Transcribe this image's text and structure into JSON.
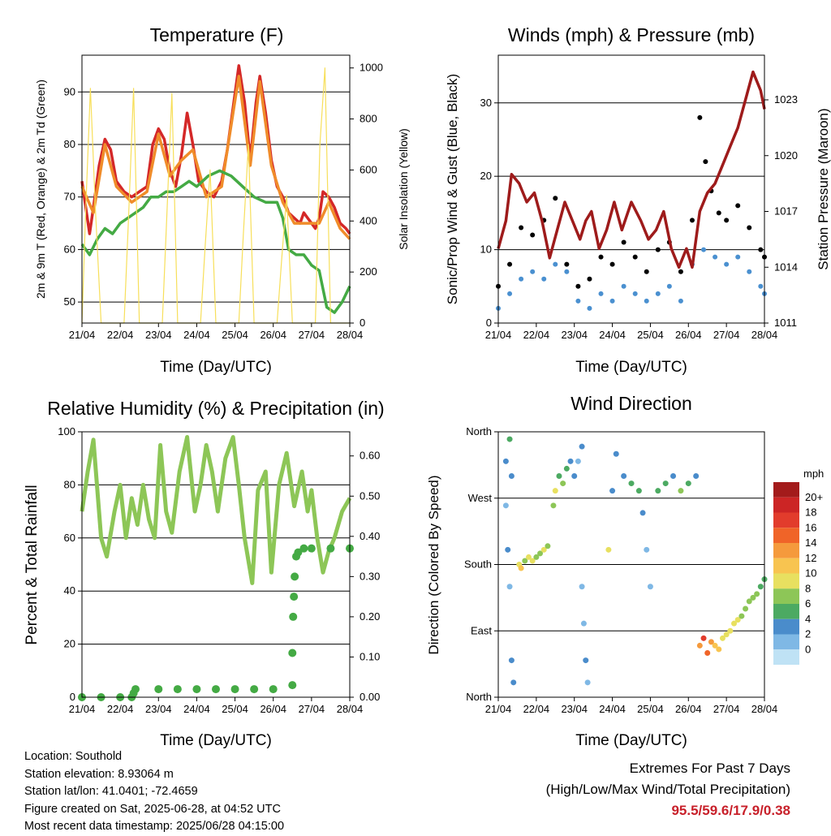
{
  "shared": {
    "xlabel": "Time (Day/UTC)",
    "xticks": [
      "21/04",
      "22/04",
      "23/04",
      "24/04",
      "25/04",
      "26/04",
      "27/04",
      "28/04"
    ]
  },
  "chart_data": [
    {
      "id": "temperature",
      "type": "line",
      "title": "Temperature (F)",
      "xlabel": "Time (Day/UTC)",
      "ylabel": "2m & 9m T (Red, Orange) & 2m Td (Green)",
      "ylabel_right": "Solar Insolation (Yellow)",
      "ylim": [
        46,
        97
      ],
      "yticks": [
        50,
        60,
        70,
        80,
        90
      ],
      "ylim_right": [
        0,
        1050
      ],
      "yticks_right": [
        0,
        200,
        400,
        600,
        800,
        1000
      ],
      "xlim": [
        0,
        7
      ],
      "grid": true,
      "series": [
        {
          "color": "#d42828",
          "x": [
            0,
            0.1,
            0.2,
            0.3,
            0.45,
            0.6,
            0.75,
            0.9,
            1.1,
            1.3,
            1.5,
            1.7,
            1.85,
            2.0,
            2.15,
            2.3,
            2.45,
            2.6,
            2.75,
            2.9,
            3.05,
            3.25,
            3.45,
            3.65,
            3.8,
            3.95,
            4.1,
            4.25,
            4.4,
            4.55,
            4.65,
            4.8,
            4.95,
            5.1,
            5.25,
            5.4,
            5.55,
            5.7,
            5.8,
            5.9,
            6.0,
            6.1,
            6.2,
            6.3,
            6.45,
            6.6,
            6.75,
            6.9,
            7.0
          ],
          "y": [
            73,
            68,
            63,
            68,
            76,
            81,
            79,
            73,
            71,
            70,
            71,
            72,
            80,
            83,
            81,
            75,
            72,
            78,
            86,
            80,
            73,
            71,
            70,
            73,
            79,
            87,
            95,
            88,
            77,
            88,
            93,
            86,
            77,
            72,
            70,
            67,
            66,
            65,
            67,
            66,
            65,
            64,
            66,
            71,
            70,
            68,
            65,
            64,
            63
          ]
        },
        {
          "color": "#f08c2a",
          "x": [
            0,
            0.3,
            0.6,
            0.9,
            1.3,
            1.7,
            2.0,
            2.3,
            2.6,
            2.9,
            3.25,
            3.65,
            3.95,
            4.1,
            4.4,
            4.65,
            4.95,
            5.25,
            5.55,
            5.9,
            6.2,
            6.45,
            6.75,
            7.0
          ],
          "y": [
            72,
            67,
            80,
            72,
            69,
            71,
            82,
            74,
            77,
            79,
            70,
            72,
            86,
            93,
            76,
            92,
            76,
            69,
            65,
            65,
            65,
            69,
            64,
            62
          ]
        },
        {
          "color": "#44aa44",
          "x": [
            0,
            0.2,
            0.4,
            0.6,
            0.8,
            1.0,
            1.2,
            1.4,
            1.6,
            1.8,
            2.0,
            2.2,
            2.4,
            2.6,
            2.8,
            3.0,
            3.3,
            3.6,
            3.9,
            4.2,
            4.5,
            4.8,
            5.1,
            5.25,
            5.4,
            5.6,
            5.8,
            6.0,
            6.2,
            6.4,
            6.6,
            6.8,
            7.0
          ],
          "y": [
            61,
            59,
            62,
            64,
            63,
            65,
            66,
            67,
            68,
            70,
            70,
            71,
            71,
            72,
            73,
            72,
            74,
            75,
            74,
            72,
            70,
            69,
            69,
            66,
            60,
            59,
            59,
            57,
            56,
            49,
            48,
            50,
            53
          ]
        },
        {
          "color": "#f7df5a",
          "axis": "right",
          "x": [
            0,
            0.1,
            0.22,
            0.35,
            0.5,
            1.1,
            1.22,
            1.35,
            1.5,
            2.1,
            2.22,
            2.35,
            2.5,
            3.1,
            3.22,
            3.35,
            3.5,
            4.1,
            4.22,
            4.35,
            4.5,
            5.1,
            5.22,
            5.35,
            5.5,
            6.1,
            6.22,
            6.35,
            6.5,
            7.0
          ],
          "y": [
            0,
            450,
            920,
            450,
            0,
            0,
            420,
            920,
            0,
            0,
            430,
            900,
            0,
            0,
            300,
            600,
            0,
            0,
            350,
            700,
            0,
            0,
            250,
            500,
            0,
            0,
            700,
            1000,
            0,
            0
          ]
        }
      ]
    },
    {
      "id": "winds",
      "type": "scatter",
      "title": "Winds (mph) & Pressure (mb)",
      "xlabel": "Time (Day/UTC)",
      "ylabel": "Sonic/Prop Wind & Gust (Blue, Black)",
      "ylabel_right": "Station Pressure (Maroon)",
      "ylim": [
        0,
        36.5
      ],
      "yticks": [
        0,
        10,
        20,
        30
      ],
      "ylim_right": [
        1011,
        1025.4
      ],
      "yticks_right": [
        1011,
        1014,
        1017,
        1020,
        1023
      ],
      "xlim": [
        0,
        7
      ],
      "grid": true,
      "series": [
        {
          "color": "#4a90d0",
          "x": [
            0,
            0.3,
            0.6,
            0.9,
            1.2,
            1.5,
            1.8,
            2.1,
            2.4,
            2.7,
            3.0,
            3.3,
            3.6,
            3.9,
            4.2,
            4.5,
            4.8,
            5.1,
            5.4,
            5.7,
            6.0,
            6.3,
            6.6,
            6.9,
            7.0
          ],
          "y": [
            2,
            4,
            6,
            7,
            6,
            8,
            7,
            3,
            2,
            4,
            3,
            5,
            4,
            3,
            4,
            5,
            3,
            8,
            10,
            9,
            8,
            9,
            7,
            5,
            4
          ]
        },
        {
          "color": "#000000",
          "x": [
            0,
            0.3,
            0.6,
            0.9,
            1.2,
            1.5,
            1.8,
            2.1,
            2.4,
            2.7,
            3.0,
            3.3,
            3.6,
            3.9,
            4.2,
            4.5,
            4.8,
            5.1,
            5.3,
            5.45,
            5.6,
            5.8,
            6.0,
            6.3,
            6.6,
            6.9,
            7.0
          ],
          "y": [
            5,
            8,
            13,
            12,
            14,
            17,
            8,
            5,
            6,
            9,
            8,
            11,
            9,
            7,
            10,
            11,
            7,
            14,
            28,
            22,
            18,
            15,
            14,
            16,
            13,
            10,
            9
          ]
        },
        {
          "color": "#9e1b1b",
          "axis": "right",
          "x": [
            0,
            0.2,
            0.35,
            0.55,
            0.75,
            0.95,
            1.15,
            1.35,
            1.55,
            1.75,
            1.95,
            2.15,
            2.3,
            2.45,
            2.65,
            2.85,
            3.05,
            3.25,
            3.5,
            3.75,
            3.95,
            4.15,
            4.35,
            4.55,
            4.75,
            4.95,
            5.1,
            5.3,
            5.5,
            5.7,
            5.9,
            6.1,
            6.3,
            6.5,
            6.7,
            6.9,
            7.0
          ],
          "y": [
            1015,
            1016.5,
            1019,
            1018.5,
            1017.5,
            1018,
            1016.5,
            1014.5,
            1016,
            1017.5,
            1016.5,
            1015.5,
            1016.5,
            1017,
            1015,
            1016,
            1017.5,
            1016,
            1017.5,
            1016.5,
            1015.5,
            1016,
            1017,
            1015,
            1014,
            1015,
            1014,
            1017,
            1018,
            1018.5,
            1019.5,
            1020.5,
            1021.5,
            1023,
            1024.5,
            1023.5,
            1022.5
          ]
        }
      ]
    },
    {
      "id": "humidity",
      "type": "line",
      "title": "Relative Humidity (%) & Precipitation (in)",
      "xlabel": "Time (Day/UTC)",
      "ylabel": "Percent & Total Rainfall",
      "ylim": [
        0,
        100
      ],
      "yticks": [
        0,
        20,
        40,
        60,
        80,
        100
      ],
      "ylim_right": [
        0,
        0.66
      ],
      "yticks_right": [
        "0.00",
        "0.10",
        "0.20",
        "0.30",
        "0.40",
        "0.50",
        "0.60"
      ],
      "xlim": [
        0,
        7
      ],
      "grid": true,
      "series": [
        {
          "color": "#8dc657",
          "x": [
            0,
            0.15,
            0.3,
            0.5,
            0.65,
            0.85,
            1.0,
            1.15,
            1.3,
            1.45,
            1.6,
            1.75,
            1.9,
            2.05,
            2.2,
            2.35,
            2.55,
            2.75,
            2.95,
            3.1,
            3.25,
            3.4,
            3.55,
            3.75,
            3.95,
            4.1,
            4.25,
            4.45,
            4.6,
            4.8,
            4.95,
            5.15,
            5.35,
            5.55,
            5.75,
            5.9,
            6.0,
            6.15,
            6.3,
            6.45,
            6.6,
            6.8,
            7.0
          ],
          "y": [
            70,
            85,
            97,
            60,
            53,
            70,
            80,
            60,
            75,
            65,
            80,
            67,
            60,
            95,
            70,
            62,
            85,
            98,
            70,
            80,
            95,
            85,
            70,
            90,
            98,
            80,
            60,
            43,
            78,
            85,
            47,
            80,
            92,
            72,
            85,
            70,
            78,
            60,
            47,
            55,
            60,
            70,
            75
          ]
        },
        {
          "color": "#44aa44",
          "marker": "dot",
          "axis": "right",
          "x": [
            0,
            0.5,
            1.0,
            1.3,
            1.35,
            1.4,
            2.0,
            2.5,
            3.0,
            3.5,
            4.0,
            4.5,
            5.0,
            5.5,
            5.5,
            5.52,
            5.54,
            5.56,
            5.6,
            5.65,
            5.8,
            6.0,
            6.5,
            7.0
          ],
          "y": [
            0,
            0,
            0,
            0,
            0.01,
            0.02,
            0.02,
            0.02,
            0.02,
            0.02,
            0.02,
            0.02,
            0.02,
            0.03,
            0.11,
            0.2,
            0.25,
            0.3,
            0.35,
            0.36,
            0.37,
            0.37,
            0.37,
            0.37
          ]
        }
      ]
    },
    {
      "id": "direction",
      "type": "scatter",
      "title": "Wind Direction",
      "xlabel": "Time (Day/UTC)",
      "ylabel": "Direction (Colored By Speed)",
      "ylim": [
        0,
        360
      ],
      "yticks": [
        "North",
        "East",
        "South",
        "West",
        "North"
      ],
      "xlim": [
        0,
        7
      ],
      "grid": true,
      "colorbar": {
        "unit": "mph",
        "labels": [
          "20+",
          "18",
          "16",
          "14",
          "12",
          "10",
          "8",
          "6",
          "4",
          "2",
          "0"
        ],
        "colors": [
          "#a31b1b",
          "#cc2525",
          "#e23c2c",
          "#f06428",
          "#f59a3c",
          "#f8c450",
          "#e8e060",
          "#8dc657",
          "#4caa62",
          "#4a8ccb",
          "#7fb8e5",
          "#bfe2f5"
        ]
      },
      "points": [
        {
          "x": 0.2,
          "y": 320,
          "s": 3
        },
        {
          "x": 0.3,
          "y": 350,
          "s": 5
        },
        {
          "x": 0.35,
          "y": 300,
          "s": 4
        },
        {
          "x": 0.2,
          "y": 260,
          "s": 2
        },
        {
          "x": 0.25,
          "y": 200,
          "s": 3
        },
        {
          "x": 0.3,
          "y": 150,
          "s": 1
        },
        {
          "x": 0.35,
          "y": 50,
          "s": 3
        },
        {
          "x": 0.4,
          "y": 20,
          "s": 4
        },
        {
          "x": 0.55,
          "y": 180,
          "s": 9
        },
        {
          "x": 0.6,
          "y": 175,
          "s": 11
        },
        {
          "x": 0.7,
          "y": 185,
          "s": 8
        },
        {
          "x": 0.8,
          "y": 190,
          "s": 9
        },
        {
          "x": 0.9,
          "y": 185,
          "s": 10
        },
        {
          "x": 1.0,
          "y": 190,
          "s": 7
        },
        {
          "x": 1.1,
          "y": 195,
          "s": 8
        },
        {
          "x": 1.2,
          "y": 200,
          "s": 9
        },
        {
          "x": 1.3,
          "y": 205,
          "s": 7
        },
        {
          "x": 1.45,
          "y": 260,
          "s": 8
        },
        {
          "x": 1.5,
          "y": 280,
          "s": 10
        },
        {
          "x": 1.6,
          "y": 300,
          "s": 6
        },
        {
          "x": 1.7,
          "y": 290,
          "s": 7
        },
        {
          "x": 1.8,
          "y": 310,
          "s": 5
        },
        {
          "x": 1.9,
          "y": 320,
          "s": 4
        },
        {
          "x": 2.0,
          "y": 300,
          "s": 3
        },
        {
          "x": 2.1,
          "y": 320,
          "s": 2
        },
        {
          "x": 2.2,
          "y": 340,
          "s": 4
        },
        {
          "x": 2.2,
          "y": 150,
          "s": 2
        },
        {
          "x": 2.25,
          "y": 100,
          "s": 1
        },
        {
          "x": 2.3,
          "y": 50,
          "s": 3
        },
        {
          "x": 2.35,
          "y": 20,
          "s": 2
        },
        {
          "x": 2.9,
          "y": 200,
          "s": 9
        },
        {
          "x": 3.0,
          "y": 280,
          "s": 4
        },
        {
          "x": 3.1,
          "y": 330,
          "s": 3
        },
        {
          "x": 3.3,
          "y": 300,
          "s": 4
        },
        {
          "x": 3.5,
          "y": 290,
          "s": 5
        },
        {
          "x": 3.7,
          "y": 280,
          "s": 6
        },
        {
          "x": 3.8,
          "y": 250,
          "s": 3
        },
        {
          "x": 3.9,
          "y": 200,
          "s": 2
        },
        {
          "x": 4.0,
          "y": 150,
          "s": 1
        },
        {
          "x": 4.2,
          "y": 280,
          "s": 6
        },
        {
          "x": 4.4,
          "y": 290,
          "s": 5
        },
        {
          "x": 4.6,
          "y": 300,
          "s": 4
        },
        {
          "x": 4.8,
          "y": 280,
          "s": 7
        },
        {
          "x": 5.0,
          "y": 290,
          "s": 5
        },
        {
          "x": 5.2,
          "y": 300,
          "s": 3
        },
        {
          "x": 5.3,
          "y": 70,
          "s": 14
        },
        {
          "x": 5.4,
          "y": 80,
          "s": 18
        },
        {
          "x": 5.5,
          "y": 60,
          "s": 16
        },
        {
          "x": 5.6,
          "y": 75,
          "s": 14
        },
        {
          "x": 5.7,
          "y": 70,
          "s": 12
        },
        {
          "x": 5.8,
          "y": 65,
          "s": 11
        },
        {
          "x": 5.9,
          "y": 80,
          "s": 10
        },
        {
          "x": 6.0,
          "y": 85,
          "s": 10
        },
        {
          "x": 6.1,
          "y": 90,
          "s": 9
        },
        {
          "x": 6.2,
          "y": 100,
          "s": 10
        },
        {
          "x": 6.3,
          "y": 105,
          "s": 9
        },
        {
          "x": 6.4,
          "y": 110,
          "s": 8
        },
        {
          "x": 6.5,
          "y": 120,
          "s": 8
        },
        {
          "x": 6.6,
          "y": 130,
          "s": 7
        },
        {
          "x": 6.7,
          "y": 135,
          "s": 8
        },
        {
          "x": 6.8,
          "y": 140,
          "s": 7
        },
        {
          "x": 6.9,
          "y": 150,
          "s": 6
        },
        {
          "x": 7.0,
          "y": 160,
          "s": 5
        }
      ]
    }
  ],
  "footer": {
    "location": "Location: Southold",
    "elevation": "Station elevation: 8.93064 m",
    "latlon": "Station lat/lon: 41.0401; -72.4659",
    "created": "Figure created on Sat, 2025-06-28, at 04:52 UTC",
    "recent": "Most recent data timestamp: 2025/06/28 04:15:00"
  },
  "extremes": {
    "title": "Extremes For Past 7 Days",
    "subtitle": "(High/Low/Max Wind/Total Precipitation)",
    "values": "95.5/59.6/17.9/0.38"
  }
}
